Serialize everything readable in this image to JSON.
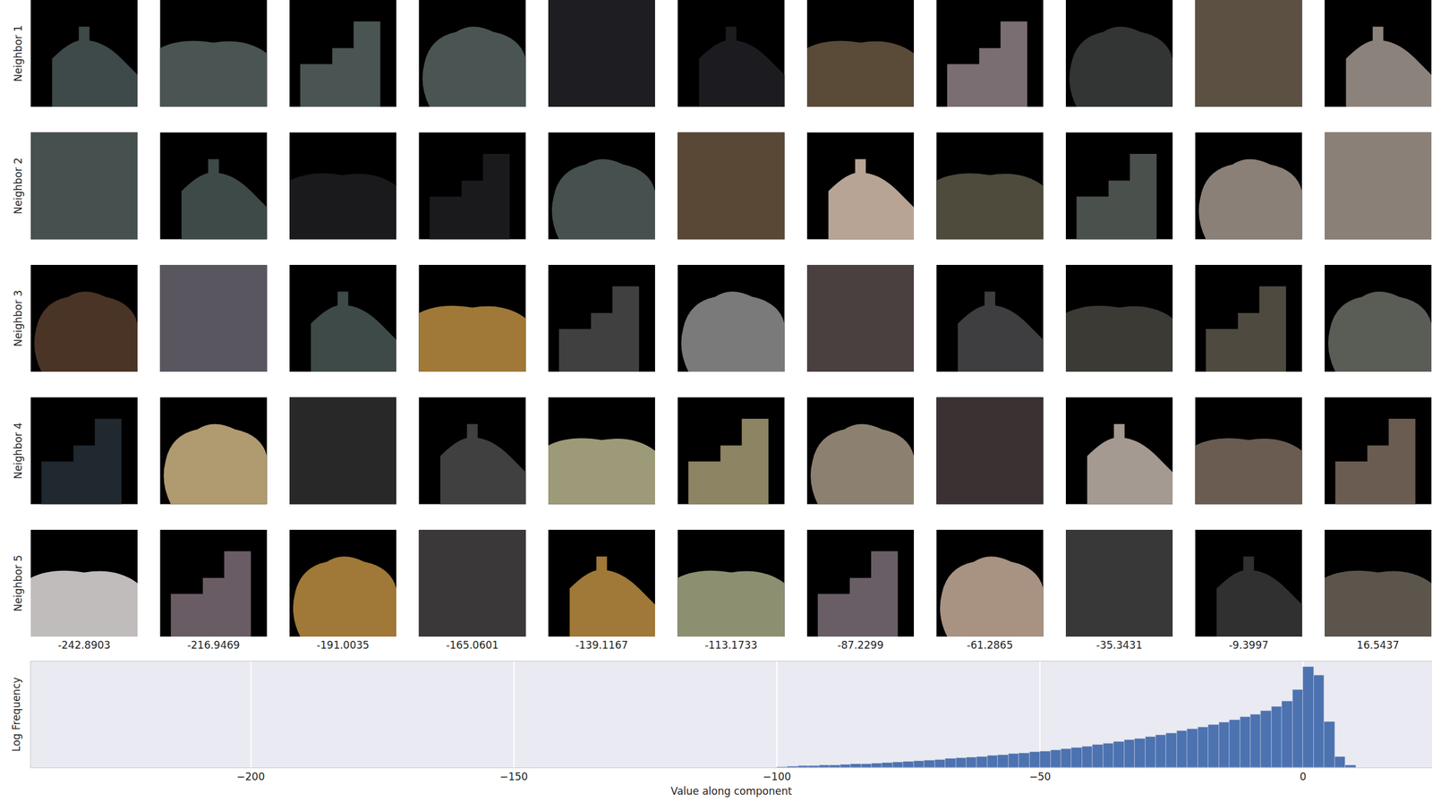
{
  "patch_grid": {
    "row_labels": [
      "Neighbor 1",
      "Neighbor 2",
      "Neighbor 3",
      "Neighbor 4",
      "Neighbor 5"
    ],
    "column_labels": [
      "-242.8903",
      "-216.9469",
      "-191.0035",
      "-165.0601",
      "-139.1167",
      "-113.1733",
      "-87.2299",
      "-61.2865",
      "-35.3431",
      "-9.3997",
      "16.5437"
    ]
  },
  "chart_data": {
    "type": "histogram",
    "x_label": "Value along component",
    "y_label": "Log Frequency",
    "bins": [
      -100,
      -98,
      -96,
      -94,
      -92,
      -90,
      -88,
      -86,
      -84,
      -82,
      -80,
      -78,
      -76,
      -74,
      -72,
      -70,
      -68,
      -66,
      -64,
      -62,
      -60,
      -58,
      -56,
      -54,
      -52,
      -50,
      -48,
      -46,
      -44,
      -42,
      -40,
      -38,
      -36,
      -34,
      -32,
      -30,
      -28,
      -26,
      -24,
      -22,
      -20,
      -18,
      -16,
      -14,
      -12,
      -10,
      -8,
      -6,
      -4,
      -2,
      0,
      2,
      4,
      6,
      8,
      10
    ],
    "values": [
      0.05,
      0.07,
      0.09,
      0.11,
      0.13,
      0.15,
      0.17,
      0.2,
      0.22,
      0.25,
      0.28,
      0.31,
      0.34,
      0.38,
      0.42,
      0.46,
      0.5,
      0.54,
      0.58,
      0.63,
      0.68,
      0.73,
      0.78,
      0.83,
      0.88,
      0.93,
      1.0,
      1.07,
      1.14,
      1.21,
      1.3,
      1.38,
      1.47,
      1.56,
      1.65,
      1.75,
      1.85,
      1.96,
      2.07,
      2.18,
      2.3,
      2.43,
      2.56,
      2.7,
      2.85,
      3.0,
      3.2,
      3.45,
      3.75,
      4.4,
      5.7,
      5.2,
      2.6,
      0.6,
      0.15
    ],
    "color": "#4c72b0",
    "xlim": [
      -241.8,
      24.5
    ],
    "xticks": [
      {
        "value": -200,
        "label": "−200"
      },
      {
        "value": -150,
        "label": "−150"
      },
      {
        "value": -100,
        "label": "−100"
      },
      {
        "value": -50,
        "label": "−50"
      },
      {
        "value": 0,
        "label": "0"
      }
    ],
    "ylim": [
      0,
      6
    ],
    "grid": true,
    "tick_labels": "x"
  }
}
